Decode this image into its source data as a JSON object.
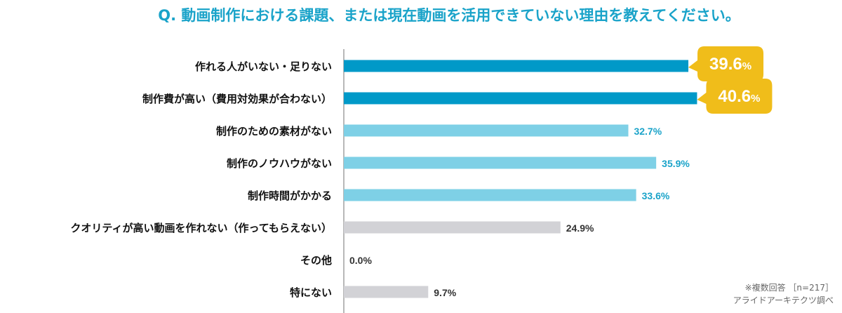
{
  "chart_data": {
    "type": "bar",
    "orientation": "horizontal",
    "title": "Q. 動画制作における課題、または現在動画を活用できていない理由を教えてください。",
    "categories": [
      "作れる人がいない・足りない",
      "制作費が高い（費用対効果が合わない）",
      "制作のための素材がない",
      "制作のノウハウがない",
      "制作時間がかかる",
      "クオリティが高い動画を作れない（作ってもらえない）",
      "その他",
      "特にない"
    ],
    "values": [
      39.6,
      40.6,
      32.7,
      35.9,
      33.6,
      24.9,
      0.0,
      9.7
    ],
    "value_labels": [
      "39.6",
      "40.6",
      "32.7%",
      "35.9%",
      "33.6%",
      "24.9%",
      "0.0%",
      "9.7%"
    ],
    "callout_unit": "%",
    "highlight": [
      "strong",
      "strong",
      "light",
      "light",
      "light",
      "gray",
      "gray",
      "gray"
    ],
    "xlim": [
      0,
      45
    ],
    "footnote": [
      "※複数回答 ［n=217］",
      "アライドアーキテクツ調べ"
    ],
    "colors": {
      "title": "#1aa3c9",
      "strong": "#0099c8",
      "light": "#7ed0e6",
      "gray": "#d2d2d6",
      "callout": "#f0bd1a",
      "light_value_text": "#1aa3c9",
      "gray_value_text": "#333333",
      "axis": "#888888",
      "label_text": "#111111",
      "note_text": "#666666"
    }
  }
}
